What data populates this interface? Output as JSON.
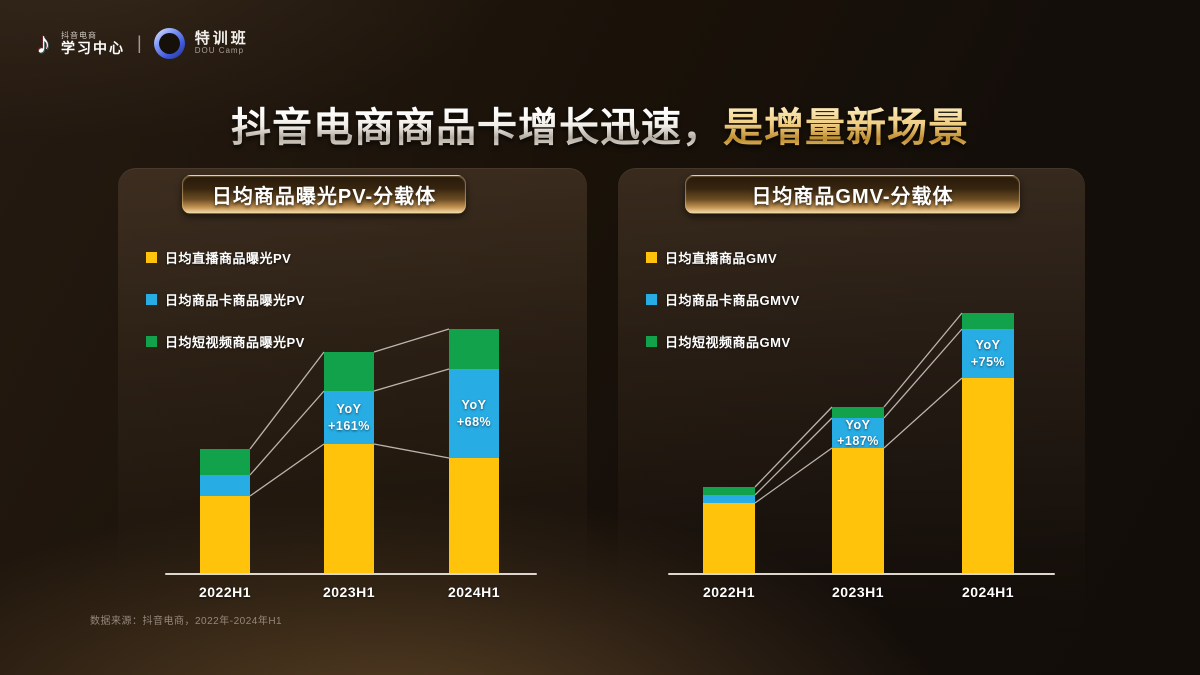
{
  "logo": {
    "note_icon_glyph": "♪",
    "brand_small": "抖音电商",
    "brand_main": "学习中心",
    "divider": "|",
    "badge_title": "特训班",
    "badge_sub": "DOU Camp"
  },
  "slide_title": {
    "normal": "抖音电商商品卡增长迅速，",
    "highlight": "是增量新场景"
  },
  "footnote": "数据来源：抖音电商，2022年-2024年H1",
  "colors": {
    "live": "#FFC30B",
    "card": "#27ACE4",
    "video": "#12A24B",
    "connector": "#D6D0C8",
    "accent_gold": "#E9C684"
  },
  "chart_data": [
    {
      "type": "bar",
      "stacked": true,
      "title": "日均商品曝光PV-分载体",
      "categories": [
        "2022H1",
        "2023H1",
        "2024H1"
      ],
      "series": [
        {
          "name": "日均直播商品曝光PV",
          "color_key": "live",
          "values": [
            78,
            130,
            116
          ]
        },
        {
          "name": "日均商品卡商品曝光PV",
          "color_key": "card",
          "values": [
            21,
            53,
            89
          ]
        },
        {
          "name": "日均短视频商品曝光PV",
          "color_key": "video",
          "values": [
            26,
            39,
            40
          ]
        }
      ],
      "yoy": {
        "applies_to_series": "日均商品卡商品曝光PV",
        "prefix": "YoY",
        "labels": [
          null,
          "+161%",
          "+68%"
        ]
      },
      "unit": "relative height (no y-axis shown)",
      "legend_position": "top-left",
      "grid": false,
      "connectors": "segment boundaries joined by thin lines between adjacent bars"
    },
    {
      "type": "bar",
      "stacked": true,
      "title": "日均商品GMV-分载体",
      "categories": [
        "2022H1",
        "2023H1",
        "2024H1"
      ],
      "series": [
        {
          "name": "日均直播商品GMV",
          "color_key": "live",
          "values": [
            71,
            126,
            196
          ]
        },
        {
          "name": "日均商品卡商品GMVV",
          "color_key": "card",
          "values": [
            8,
            30,
            49
          ]
        },
        {
          "name": "日均短视频商品GMV",
          "color_key": "video",
          "values": [
            8,
            11,
            16
          ]
        }
      ],
      "yoy": {
        "applies_to_series": "日均商品卡商品GMVV",
        "prefix": "YoY",
        "labels": [
          null,
          "+187%",
          "+75%"
        ]
      },
      "unit": "relative height (no y-axis shown)",
      "legend_position": "top-left",
      "grid": false,
      "connectors": "segment boundaries joined by thin lines between adjacent bars"
    }
  ]
}
